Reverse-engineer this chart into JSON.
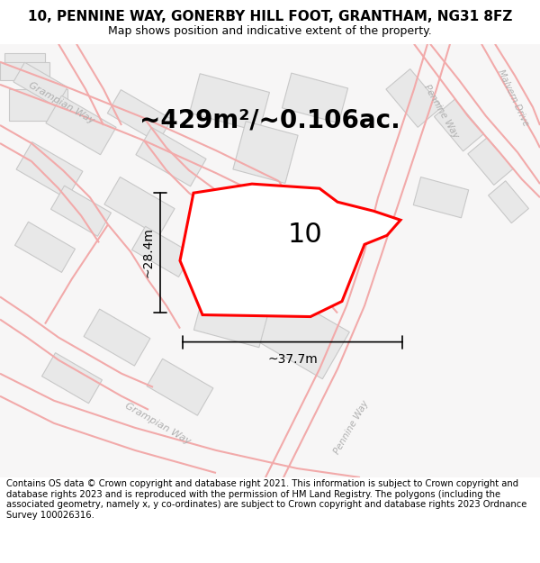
{
  "title": "10, PENNINE WAY, GONERBY HILL FOOT, GRANTHAM, NG31 8FZ",
  "subtitle": "Map shows position and indicative extent of the property.",
  "area_text": "~429m²/~0.106ac.",
  "width_text": "~37.7m",
  "height_text": "~28.4m",
  "property_number": "10",
  "footer": "Contains OS data © Crown copyright and database right 2021. This information is subject to Crown copyright and database rights 2023 and is reproduced with the permission of HM Land Registry. The polygons (including the associated geometry, namely x, y co-ordinates) are subject to Crown copyright and database rights 2023 Ordnance Survey 100026316.",
  "bg_color": "white",
  "map_bg": "#f7f6f6",
  "road_color": "#f2aaaa",
  "road_edge_color": "#e88888",
  "building_color": "#e8e8e8",
  "building_edge": "#c8c8c8",
  "plot_color": "red",
  "annotation_color": "black",
  "road_label_color": "#b0b0b0",
  "title_fontsize": 11,
  "subtitle_fontsize": 9,
  "area_fontsize": 20,
  "dim_fontsize": 10,
  "property_fontsize": 22,
  "footer_fontsize": 7.2
}
